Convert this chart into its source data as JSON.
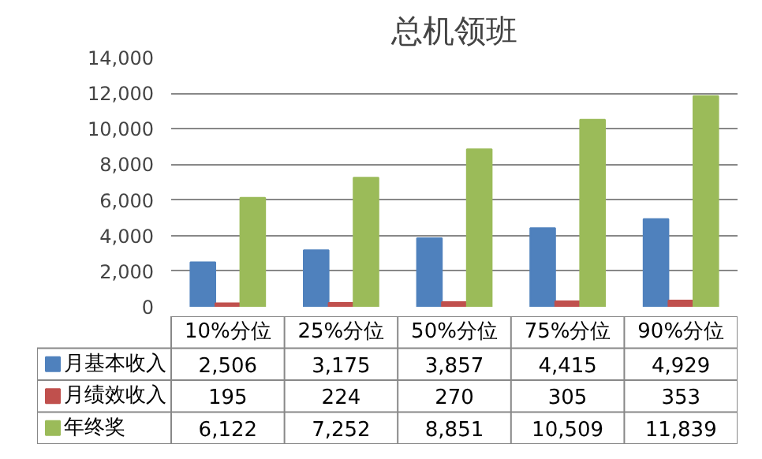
{
  "chart_data": {
    "type": "bar",
    "title": "总机领班",
    "categories": [
      "10%分位",
      "25%分位",
      "50%分位",
      "75%分位",
      "90%分位"
    ],
    "series": [
      {
        "name": "月基本收入",
        "color": "#4f81bd",
        "values": [
          2506,
          3175,
          3857,
          4415,
          4929
        ],
        "value_labels": [
          "2,506",
          "3,175",
          "3,857",
          "4,415",
          "4,929"
        ]
      },
      {
        "name": "月绩效收入",
        "color": "#c0504d",
        "values": [
          195,
          224,
          270,
          305,
          353
        ],
        "value_labels": [
          "195",
          "224",
          "270",
          "305",
          "353"
        ]
      },
      {
        "name": "年终奖",
        "color": "#9bbb59",
        "values": [
          6122,
          7252,
          8851,
          10509,
          11839
        ],
        "value_labels": [
          "6,122",
          "7,252",
          "8,851",
          "10,509",
          "11,839"
        ]
      }
    ],
    "ylim": [
      0,
      14000
    ],
    "yticks": [
      {
        "value": 0,
        "label": "0"
      },
      {
        "value": 2000,
        "label": "2,000"
      },
      {
        "value": 4000,
        "label": "4,000"
      },
      {
        "value": 6000,
        "label": "6,000"
      },
      {
        "value": 8000,
        "label": "8,000"
      },
      {
        "value": 10000,
        "label": "10,000"
      },
      {
        "value": 12000,
        "label": "12,000"
      },
      {
        "value": 14000,
        "label": "14,000"
      }
    ],
    "grid": "y",
    "legend": "bottom"
  }
}
